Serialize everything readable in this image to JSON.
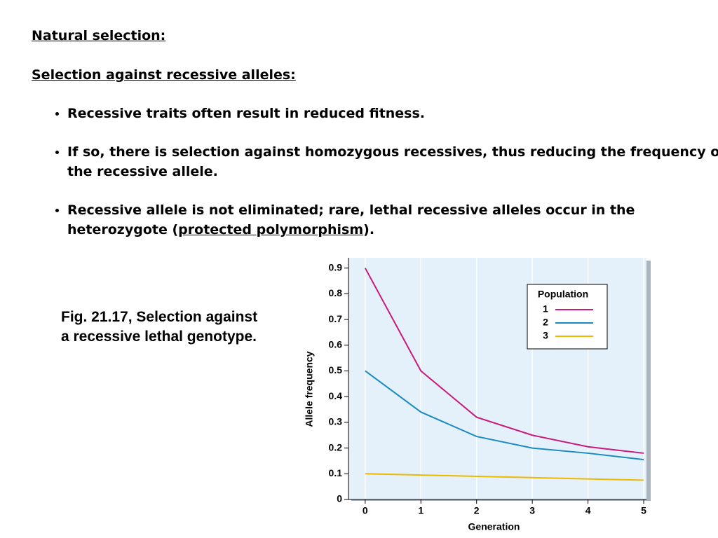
{
  "heading": "Natural selection:",
  "subheading": "Selection against recessive alleles:",
  "bullets": [
    [
      "Recessive traits often result in reduced fitness."
    ],
    [
      "If so, there is selection against homozygous recessives, thus reducing the frequency of the recessive allele."
    ],
    [
      "Recessive allele is not eliminated; rare, lethal recessive alleles occur in the heterozygote (",
      "protected polymorphism",
      ")."
    ]
  ],
  "caption": "Fig. 21.17, Selection against a recessive lethal genotype.",
  "chart_data": {
    "type": "line",
    "x_label": "Generation",
    "y_label": "Allele frequency",
    "x": [
      0,
      1,
      2,
      3,
      4,
      5
    ],
    "xlim": [
      -0.3,
      5.05
    ],
    "xticks": [
      0,
      1,
      2,
      3,
      4,
      5
    ],
    "ylim": [
      0,
      0.94
    ],
    "yticks": [
      0,
      0.1,
      0.2,
      0.3,
      0.4,
      0.5,
      0.6,
      0.7,
      0.8,
      0.9
    ],
    "grid": true,
    "legend_title": "Population",
    "legend": "upper right",
    "series": [
      {
        "name": "1",
        "color": "#c8197d",
        "values": [
          0.9,
          0.5,
          0.32,
          0.25,
          0.205,
          0.18
        ]
      },
      {
        "name": "2",
        "color": "#1a8ac0",
        "values": [
          0.5,
          0.34,
          0.245,
          0.2,
          0.18,
          0.155
        ]
      },
      {
        "name": "3",
        "color": "#f0b800",
        "values": [
          0.1,
          0.095,
          0.09,
          0.085,
          0.08,
          0.075
        ]
      }
    ]
  }
}
